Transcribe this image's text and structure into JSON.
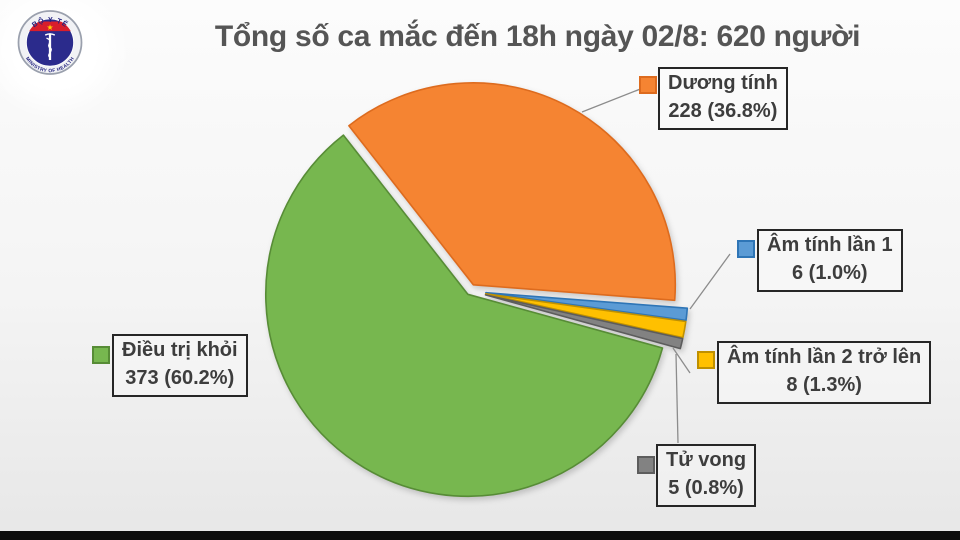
{
  "title": "Tổng số ca mắc đến 18h ngày 02/8: 620 người",
  "logo": {
    "top_text": "BỘ Y TẾ",
    "bottom_text": "MINISTRY OF HEALTH",
    "star": "★"
  },
  "colors": {
    "title_text": "#555555",
    "legend_text": "#3d3d3d",
    "leader_line": "#8c8c8c",
    "footer_bar": "#0d0d0d",
    "logo_blue": "#2b2b8c",
    "logo_red": "#d81e2c",
    "logo_star_yellow": "#ffd200"
  },
  "chart_data": {
    "type": "pie",
    "title": "Tổng số ca mắc đến 18h ngày 02/8: 620 người",
    "total": 620,
    "start_angle_deg": -38,
    "direction": "clockwise",
    "legend_position": "around-callout-boxes",
    "slices": [
      {
        "label": "Dương tính",
        "value": 228,
        "pct": 36.8,
        "display": "228 (36.8%)",
        "color": "#F58432",
        "stroke": "#DD6B1E"
      },
      {
        "label": "Âm tính lần 1",
        "value": 6,
        "pct": 1.0,
        "display": "6 (1.0%)",
        "color": "#5B9BD5",
        "stroke": "#2E75B6"
      },
      {
        "label": "Âm tính lần 2 trở lên",
        "value": 8,
        "pct": 1.3,
        "display": "8 (1.3%)",
        "color": "#FFC000",
        "stroke": "#BF9000"
      },
      {
        "label": "Tử vong",
        "value": 5,
        "pct": 0.8,
        "display": "5 (0.8%)",
        "color": "#828282",
        "stroke": "#5c5c5c"
      },
      {
        "label": "Điều trị khỏi",
        "value": 373,
        "pct": 60.2,
        "display": "373 (60.2%)",
        "color": "#77B74F",
        "stroke": "#578C36"
      }
    ]
  }
}
